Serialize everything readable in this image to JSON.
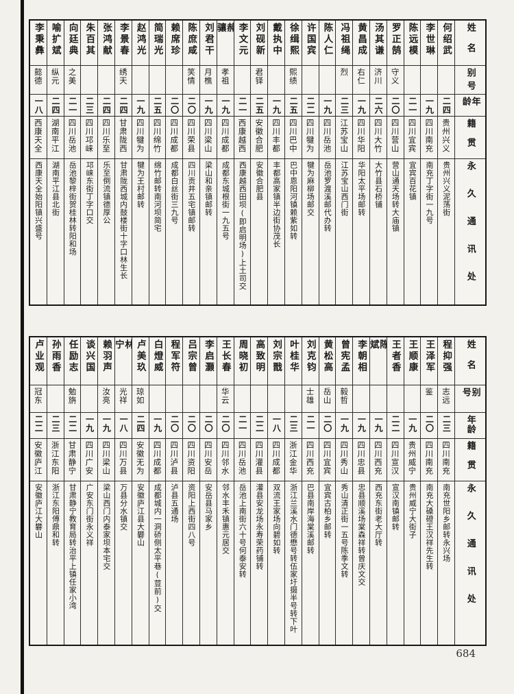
{
  "page_number": "684",
  "colors": {
    "paper": "#f3f1ec",
    "ink": "#1b1b1b",
    "table_line": "#2b2b2b"
  },
  "column_headers": [
    "姓名",
    "别号",
    "年龄",
    "籍贯",
    "永久通讯处"
  ],
  "tables": {
    "top": {
      "entries": [
        {
          "name": "何绍武",
          "alias": "",
          "age": "二四",
          "native_place": "贵州兴义",
          "address": "贵州兴义泥荡街"
        },
        {
          "name": "李世琳",
          "alias": "",
          "age": "一九",
          "native_place": "四川南充",
          "address": "南充丁字街一九号"
        },
        {
          "name": "陈远模",
          "alias": "",
          "age": "二一",
          "native_place": "四川宜宾",
          "address": "宜宾百花镇"
        },
        {
          "name": "罗正鹄",
          "alias": "守义",
          "age": "二〇",
          "native_place": "四川营山",
          "address": "营山通天场转大庙镇"
        },
        {
          "name": "汤其谦",
          "alias": "济川",
          "age": "二六",
          "native_place": "四川大竹",
          "address": "大竹县石桥铺"
        },
        {
          "name": "黄昌成",
          "alias": "右仁",
          "age": "一九",
          "native_place": "四川华阳",
          "address": "华阳太平场邮转"
        },
        {
          "name": "冯祖绳",
          "alias": "烈",
          "age": "二三",
          "native_place": "江苏宝山",
          "address": "江苏宝山西门街"
        },
        {
          "name": "陈人仁",
          "alias": "",
          "age": "一九",
          "native_place": "四川岳池",
          "address": "岳池罗渡溪邮代办转"
        },
        {
          "name": "许国宾",
          "alias": "",
          "age": "二二",
          "native_place": "四川犍为",
          "address": "犍为麻柳场邮交"
        },
        {
          "name": "徐缉熙",
          "alias": "熙绩",
          "age": "二五",
          "native_place": "四川巴中",
          "address": "巴中恩阳河镇赖紫如转"
        },
        {
          "name": "戴执中",
          "alias": "",
          "age": "一九",
          "native_place": "四川丰都",
          "address": "丰都高家镇半边街协茂长"
        },
        {
          "name": "刘砚新",
          "alias": "君铎",
          "age": "二五",
          "native_place": "安徽合肥",
          "address": "安徽合肥县"
        },
        {
          "name": "李文元",
          "alias": "",
          "age": "二一",
          "native_place": "西康越西",
          "address": "西康越西田坝(即启明场)上土司交"
        },
        {
          "name": "郝骧",
          "alias": "孝祖",
          "age": "一九",
          "native_place": "四川成都",
          "address": "成都东城根街一九五号"
        },
        {
          "name": "刘君干",
          "alias": "月樵",
          "age": "一九",
          "native_place": "四川梁山",
          "address": "梁山和亲镇邮转"
        },
        {
          "name": "陈庶咸",
          "alias": "笑情",
          "age": "二〇",
          "native_place": "四川荣县",
          "address": "四川贡井五宅镇邮转"
        },
        {
          "name": "赖席珍",
          "alias": "",
          "age": "二〇",
          "native_place": "四川成都",
          "address": "成都白丝街三九号"
        },
        {
          "name": "简瑞光",
          "alias": "",
          "age": "二五",
          "native_place": "四川绵竹",
          "address": "绵竹邮转南河坝简宅"
        },
        {
          "name": "赵鸿光",
          "alias": "",
          "age": "一九",
          "native_place": "四川犍为",
          "address": "犍为王村邮转"
        },
        {
          "name": "李景春",
          "alias": "绣天",
          "age": "二四",
          "native_place": "甘肃陇西",
          "address": "甘肃陇西城内鼓楼街十字口林生长"
        },
        {
          "name": "张鸿献",
          "alias": "",
          "age": "二四",
          "native_place": "四川乐至",
          "address": "乐至倒流镇德厚公"
        },
        {
          "name": "朱百其",
          "alias": "",
          "age": "二三",
          "native_place": "四川邛崃",
          "address": "邛崃东街丁字口交"
        },
        {
          "name": "向廷典",
          "alias": "之美",
          "age": "二一",
          "native_place": "四川岳池",
          "address": "岳池黎梓街贺桂林转阳和场"
        },
        {
          "name": "喻扩斌",
          "alias": "纵元",
          "age": "二四",
          "native_place": "湖南平江",
          "address": "湖南平江县北街"
        },
        {
          "name": "李秉彝",
          "alias": "懿德",
          "age": "一八",
          "native_place": "西康天全",
          "address": "西康天全始阳镇兴盛号"
        }
      ]
    },
    "bottom": {
      "entries": [
        {
          "name": "程抑强",
          "alias": "志远",
          "age": "二三",
          "native_place": "四川南充",
          "address": "南充世阳乡邮转永兴场"
        },
        {
          "name": "王泽军",
          "alias": "鉴",
          "age": "二〇",
          "native_place": "四川南充",
          "address": "南充大磉磴王汉祥先生转"
        },
        {
          "name": "王顺康",
          "alias": "",
          "age": "一九",
          "native_place": "贵州威宁",
          "address": "贵州威宁大街子"
        },
        {
          "name": "王者香",
          "alias": "",
          "age": "二二",
          "native_place": "四川宣汉",
          "address": "宣汉南镇邮转"
        },
        {
          "name": "陈斌",
          "alias": "",
          "age": "一九",
          "native_place": "四川西充",
          "address": "西充东街老大厅转"
        },
        {
          "name": "李朝相",
          "alias": "",
          "age": "一九",
          "native_place": "四川忠县",
          "address": "忠县顺溪场棠森祥转曾庆文交"
        },
        {
          "name": "曾宪孟",
          "alias": "毅哲",
          "age": "一九",
          "native_place": "四川秀山",
          "address": "秀山清正街一五号陈季文转"
        },
        {
          "name": "黄松高",
          "alias": "岳山",
          "age": "二〇",
          "native_place": "四川宜宾",
          "address": "宜宾古柏乡邮转"
        },
        {
          "name": "刘克钧",
          "alias": "士雄",
          "age": "二一",
          "native_place": "四川西充",
          "address": "巴县南岸海棠溪邮转"
        },
        {
          "name": "叶桂华",
          "alias": "",
          "age": "二三",
          "native_place": "浙江金华",
          "address": "浙江兰溪水门德懋号转伍家圩摄半号转下叶"
        },
        {
          "name": "刘宗戬",
          "alias": "",
          "age": "一八",
          "native_place": "四川成都",
          "address": "双流王家场向碧如转"
        },
        {
          "name": "高致明",
          "alias": "",
          "age": "二二",
          "native_place": "四川灌县",
          "address": "灌县安龙场永寿荣药铺转"
        },
        {
          "name": "周晓初",
          "alias": "",
          "age": "二一",
          "native_place": "四川岳池",
          "address": "岳池上南街六十号何泰安转"
        },
        {
          "name": "王长春",
          "alias": "华云",
          "age": "二〇",
          "native_place": "四川邻水",
          "address": "邻水丰禾镇惠元居交"
        },
        {
          "name": "李启灏",
          "alias": "",
          "age": "二〇",
          "native_place": "四川安岳",
          "address": "安岳县马家乡"
        },
        {
          "name": "吕宗曾",
          "alias": "",
          "age": "二〇",
          "native_place": "四川资阳",
          "address": "资阳上西街四八号"
        },
        {
          "name": "程军符",
          "alias": "",
          "age": "二〇",
          "native_place": "四川泸县",
          "address": "泸县五通场"
        },
        {
          "name": "白燈威",
          "alias": "",
          "age": "一九",
          "native_place": "四川成都",
          "address": "成都城内一洞硚侧太平巷(荳前)交"
        },
        {
          "name": "卢美玖",
          "alias": "琼如",
          "age": "二四",
          "native_place": "安徽无为",
          "address": "安徽庐江县大礬山"
        },
        {
          "name": "林宁",
          "alias": "光祥",
          "age": "一八",
          "native_place": "四川万县",
          "address": "万县分水镇交"
        },
        {
          "name": "赖羽声",
          "alias": "汝亮",
          "age": "一九",
          "native_place": "四川梁山",
          "address": "梁山西门内泰家坝本宅交"
        },
        {
          "name": "谈兴国",
          "alias": "",
          "age": "一九",
          "native_place": "四川广安",
          "address": "广安东门街永义祥"
        },
        {
          "name": "任励志",
          "alias": "勉旃",
          "age": "二二",
          "native_place": "甘肃静宁",
          "address": "甘肃静宁教育局转治平上镇任家小湾"
        },
        {
          "name": "孙雨香",
          "alias": "",
          "age": "二三",
          "native_place": "浙江东阳",
          "address": "浙江东阳傅鼎和转"
        },
        {
          "name": "卢业观",
          "alias": "冠东",
          "age": "二二",
          "native_place": "安徽庐江",
          "address": "安徽庐江大礬山"
        }
      ]
    }
  }
}
